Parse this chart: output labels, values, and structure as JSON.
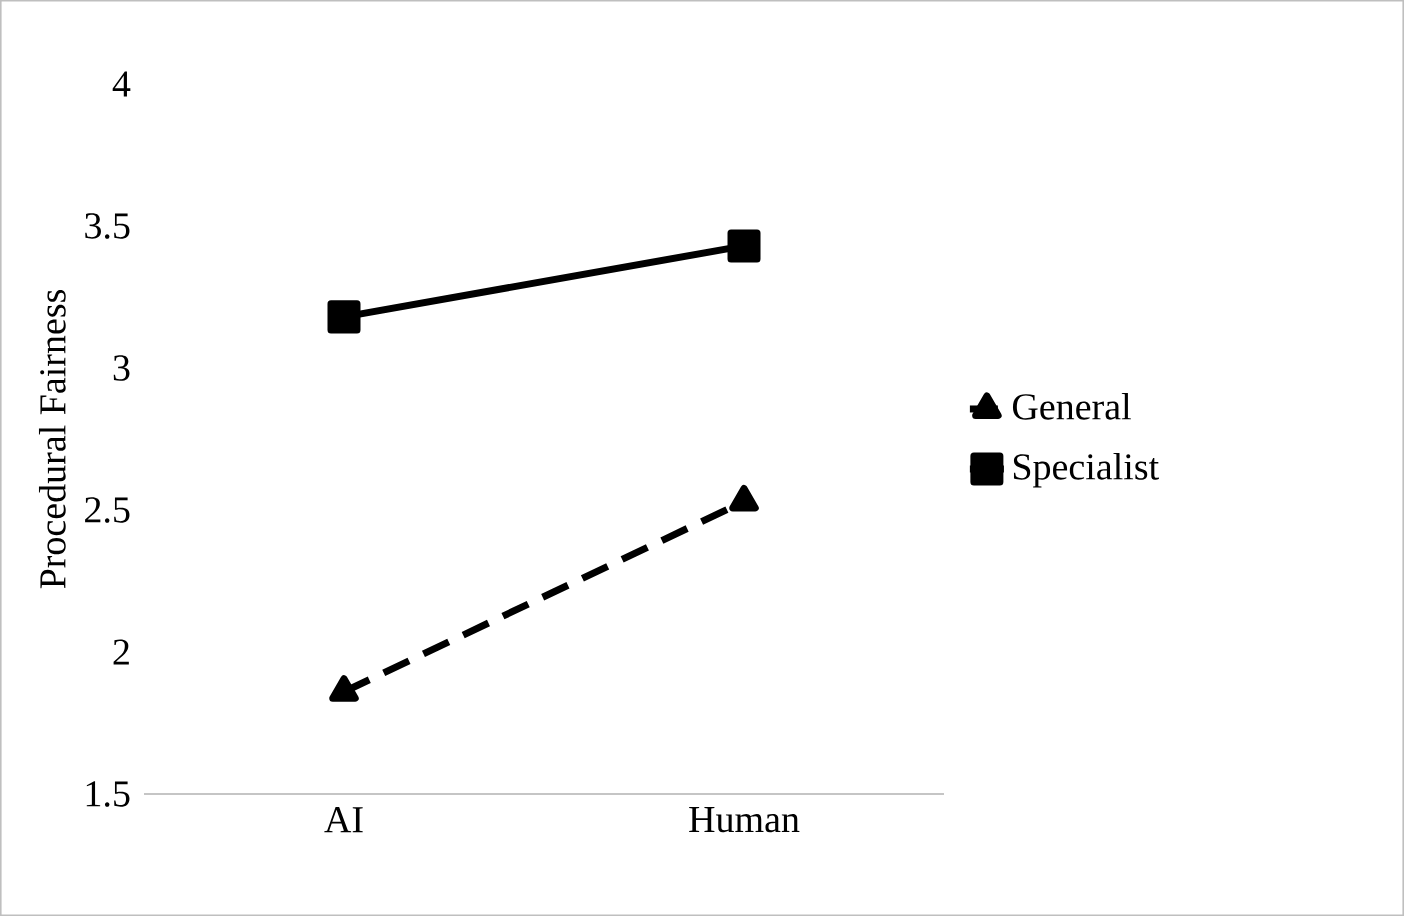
{
  "chart_data": {
    "type": "line",
    "ylabel": "Procedural Fairness",
    "categories": [
      "AI",
      "Human"
    ],
    "series": [
      {
        "name": "General",
        "color": "#000000",
        "values": [
          1.86,
          2.53
        ],
        "marker": "triangle",
        "line_style": "dashed"
      },
      {
        "name": "Specialist",
        "color": "#000000",
        "values": [
          3.18,
          3.43
        ],
        "marker": "square",
        "line_style": "solid"
      }
    ],
    "ylim": [
      1.5,
      4
    ],
    "yticks": [
      1.5,
      2,
      2.5,
      3,
      3.5,
      4
    ],
    "grid": false,
    "legend": "right"
  }
}
